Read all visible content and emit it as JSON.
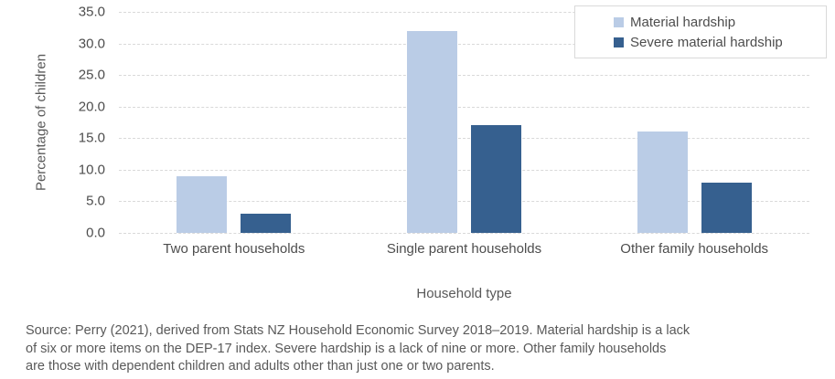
{
  "chart_data": {
    "type": "bar",
    "title": "",
    "categories": [
      "Two parent households",
      "Single parent households",
      "Other family households"
    ],
    "series": [
      {
        "name": "Material hardship",
        "color": "#bacce6",
        "values": [
          9.0,
          32.0,
          16.0
        ]
      },
      {
        "name": "Severe material hardship",
        "color": "#36608f",
        "values": [
          3.0,
          17.0,
          8.0
        ]
      }
    ],
    "xlabel": "Household type",
    "ylabel": "Percentage of children",
    "ylim": [
      0,
      35
    ],
    "ytick_step": 5,
    "ytick_decimals": 1,
    "grid": "horizontal-dashed",
    "legend_position": "top-right-overlay"
  },
  "colors": {
    "gridline": "#d9d9d9",
    "axis_text": "#4d4d4d",
    "title_text": "#595959",
    "background": "#ffffff"
  },
  "footnote": {
    "lines": [
      "Source: Perry (2021), derived from Stats NZ Household Economic Survey 2018–2019. Material hardship is a lack",
      "of six or more items on the DEP-17 index. Severe hardship is a lack of nine or more. Other family households",
      "are those with dependent children and adults other than just one or two parents."
    ]
  }
}
